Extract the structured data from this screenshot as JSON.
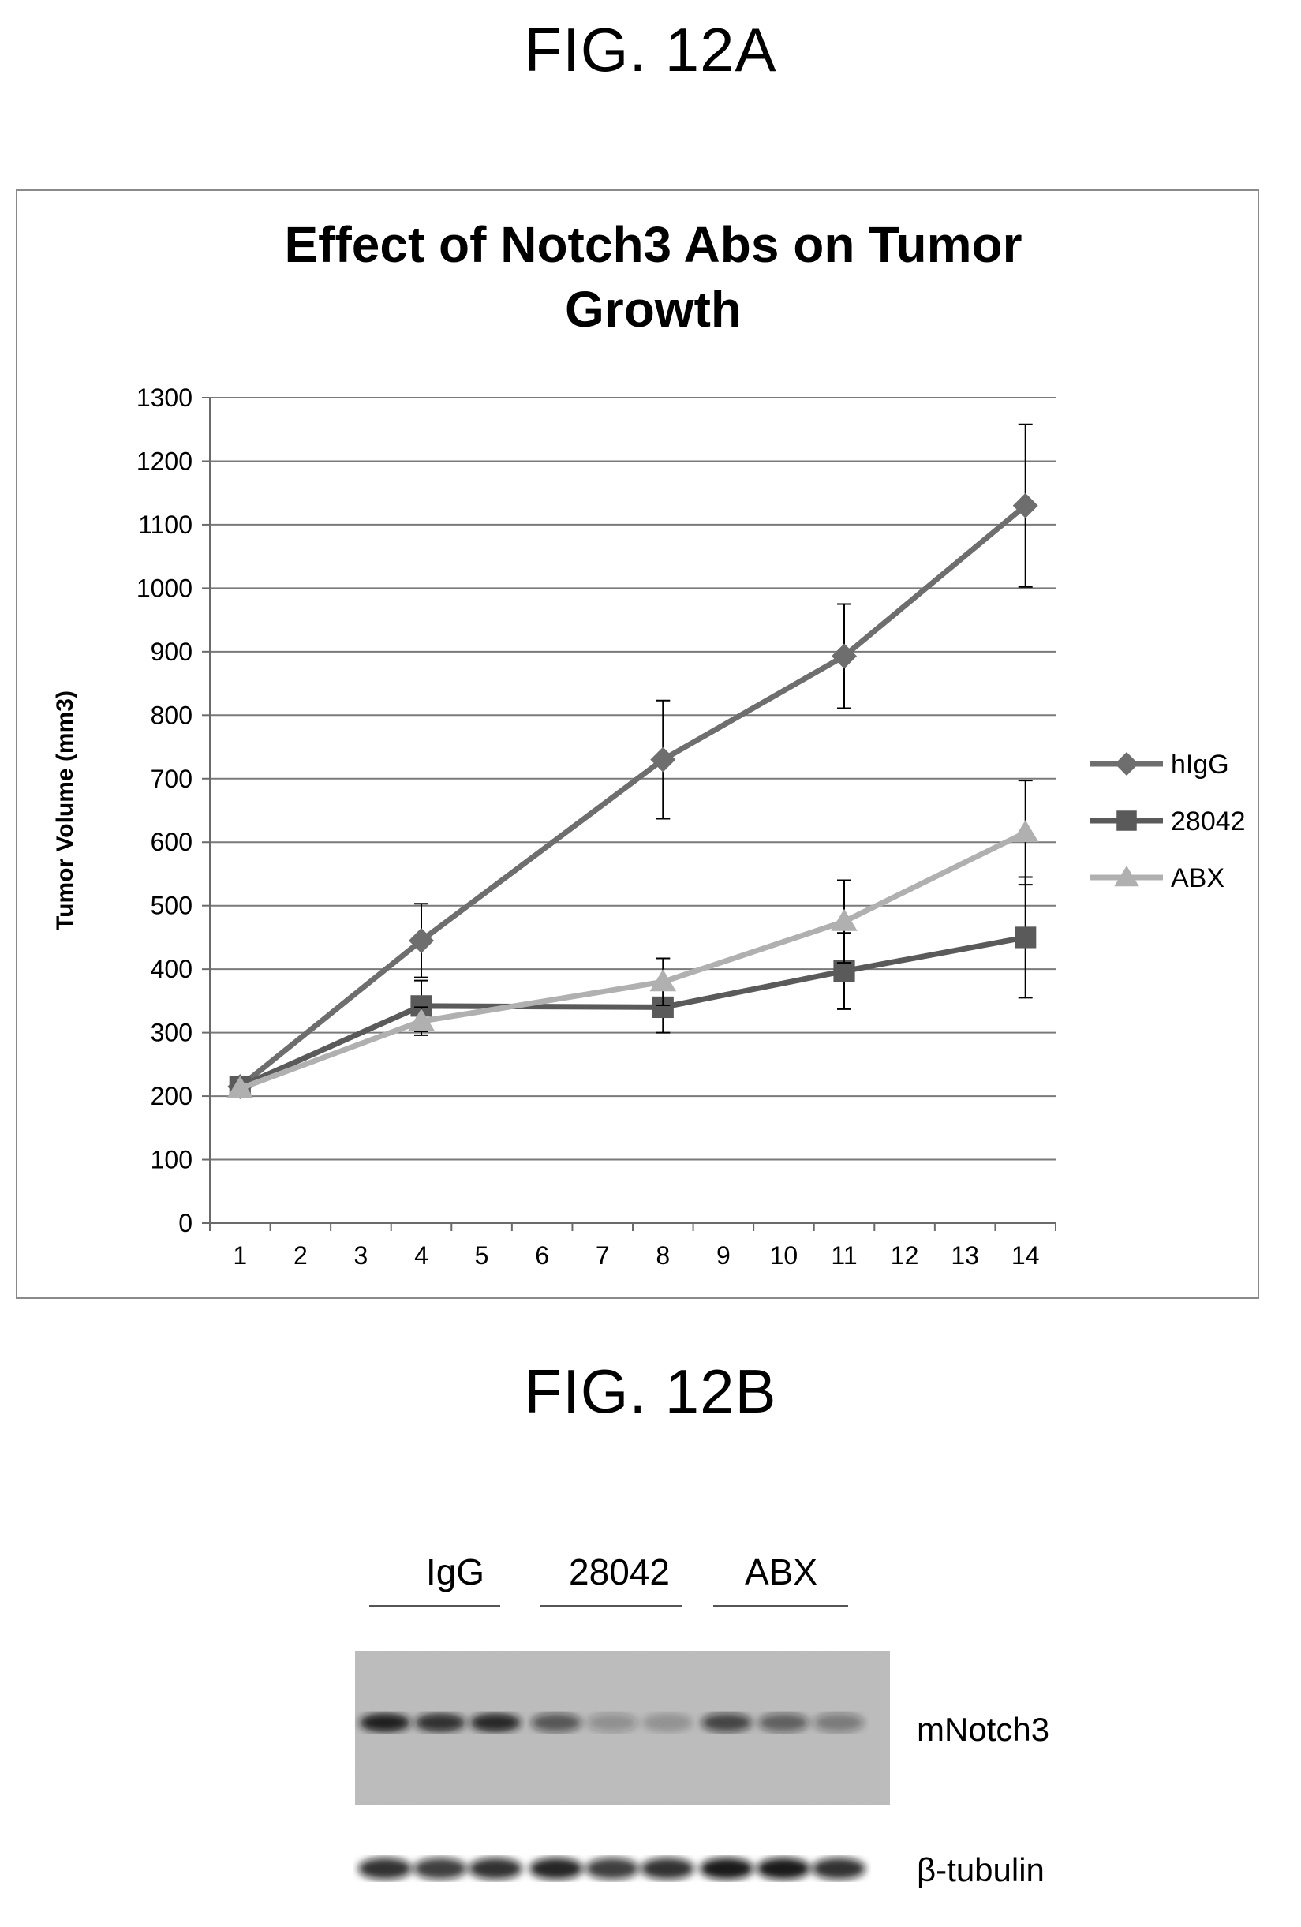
{
  "figure_a_label": "FIG. 12A",
  "figure_b_label": "FIG. 12B",
  "chart_data": {
    "type": "line",
    "title_lines": [
      "Effect of Notch3 Abs on Tumor",
      "Growth"
    ],
    "xlabel": "",
    "ylabel": "Tumor Volume (mm3)",
    "ylim": [
      0,
      1300
    ],
    "yticks": [
      0,
      100,
      200,
      300,
      400,
      500,
      600,
      700,
      800,
      900,
      1000,
      1100,
      1200,
      1300
    ],
    "categories": [
      "1",
      "2",
      "3",
      "4",
      "5",
      "6",
      "7",
      "8",
      "9",
      "10",
      "11",
      "12",
      "13",
      "14"
    ],
    "grid": "horizontal",
    "legend_position": "right",
    "series": [
      {
        "name": "hIgG",
        "marker": "diamond",
        "color": "#6e6e6e",
        "points": [
          {
            "x": 1,
            "y": 215,
            "err": 0
          },
          {
            "x": 4,
            "y": 445,
            "err": 58
          },
          {
            "x": 8,
            "y": 730,
            "err": 93
          },
          {
            "x": 11,
            "y": 893,
            "err": 82
          },
          {
            "x": 14,
            "y": 1130,
            "err": 128
          }
        ]
      },
      {
        "name": "28042",
        "marker": "square",
        "color": "#5a5a5a",
        "points": [
          {
            "x": 1,
            "y": 215,
            "err": 0
          },
          {
            "x": 4,
            "y": 342,
            "err": 40
          },
          {
            "x": 8,
            "y": 340,
            "err": 40
          },
          {
            "x": 11,
            "y": 397,
            "err": 60
          },
          {
            "x": 14,
            "y": 450,
            "err": 95
          }
        ]
      },
      {
        "name": "ABX",
        "marker": "triangle",
        "color": "#b0b0b0",
        "points": [
          {
            "x": 1,
            "y": 212,
            "err": 0
          },
          {
            "x": 4,
            "y": 318,
            "err": 22
          },
          {
            "x": 8,
            "y": 380,
            "err": 37
          },
          {
            "x": 11,
            "y": 475,
            "err": 65
          },
          {
            "x": 14,
            "y": 615,
            "err": 82
          }
        ]
      }
    ]
  },
  "blot": {
    "groups": [
      "IgG",
      "28042",
      "ABX"
    ],
    "rows": [
      "mNotch3",
      "β-tubulin"
    ],
    "lanes_per_group": 3
  }
}
